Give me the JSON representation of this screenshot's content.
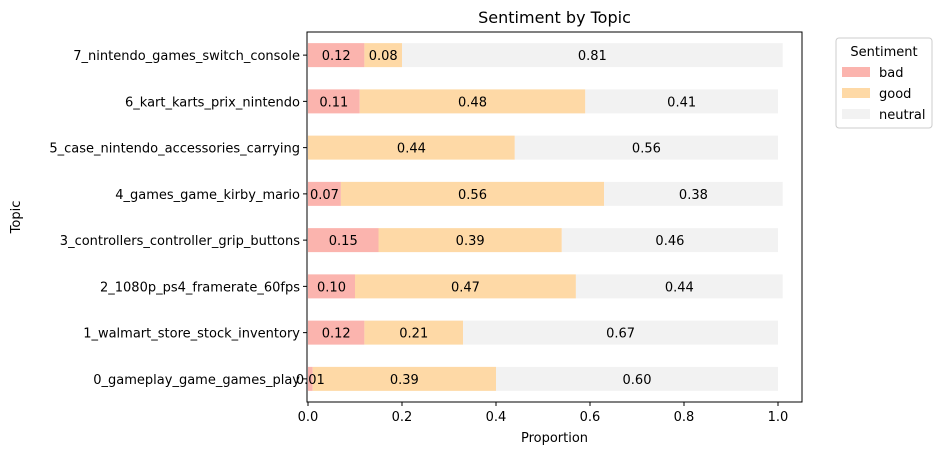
{
  "chart_data": {
    "type": "bar",
    "orientation": "horizontal",
    "stacked": true,
    "title": "Sentiment by Topic",
    "xlabel": "Proportion",
    "ylabel": "Topic",
    "xlim": [
      0.0,
      1.05
    ],
    "xticks": [
      0.0,
      0.2,
      0.4,
      0.6,
      0.8,
      1.0
    ],
    "xtick_labels": [
      "0.0",
      "0.2",
      "0.4",
      "0.6",
      "0.8",
      "1.0"
    ],
    "categories": [
      "0_gameplay_game_games_play",
      "1_walmart_store_stock_inventory",
      "2_1080p_ps4_framerate_60fps",
      "3_controllers_controller_grip_buttons",
      "4_games_game_kirby_mario",
      "5_case_nintendo_accessories_carrying",
      "6_kart_karts_prix_nintendo",
      "7_nintendo_games_switch_console"
    ],
    "series": [
      {
        "name": "bad",
        "color": "#fbb4ae",
        "values": [
          0.01,
          0.12,
          0.1,
          0.15,
          0.07,
          0.0,
          0.11,
          0.12
        ],
        "labels": [
          "0.01",
          "0.12",
          "0.10",
          "0.15",
          "0.07",
          "",
          "0.11",
          "0.12"
        ]
      },
      {
        "name": "good",
        "color": "#fed9a6",
        "values": [
          0.39,
          0.21,
          0.47,
          0.39,
          0.56,
          0.44,
          0.48,
          0.08
        ],
        "labels": [
          "0.39",
          "0.21",
          "0.47",
          "0.39",
          "0.56",
          "0.44",
          "0.48",
          "0.08"
        ]
      },
      {
        "name": "neutral",
        "color": "#f2f2f2",
        "values": [
          0.6,
          0.67,
          0.44,
          0.46,
          0.38,
          0.56,
          0.41,
          0.81
        ],
        "labels": [
          "0.60",
          "0.67",
          "0.44",
          "0.46",
          "0.38",
          "0.56",
          "0.41",
          "0.81"
        ]
      }
    ],
    "legend": {
      "title": "Sentiment",
      "placement": "outside-top-right"
    },
    "grid": false
  }
}
